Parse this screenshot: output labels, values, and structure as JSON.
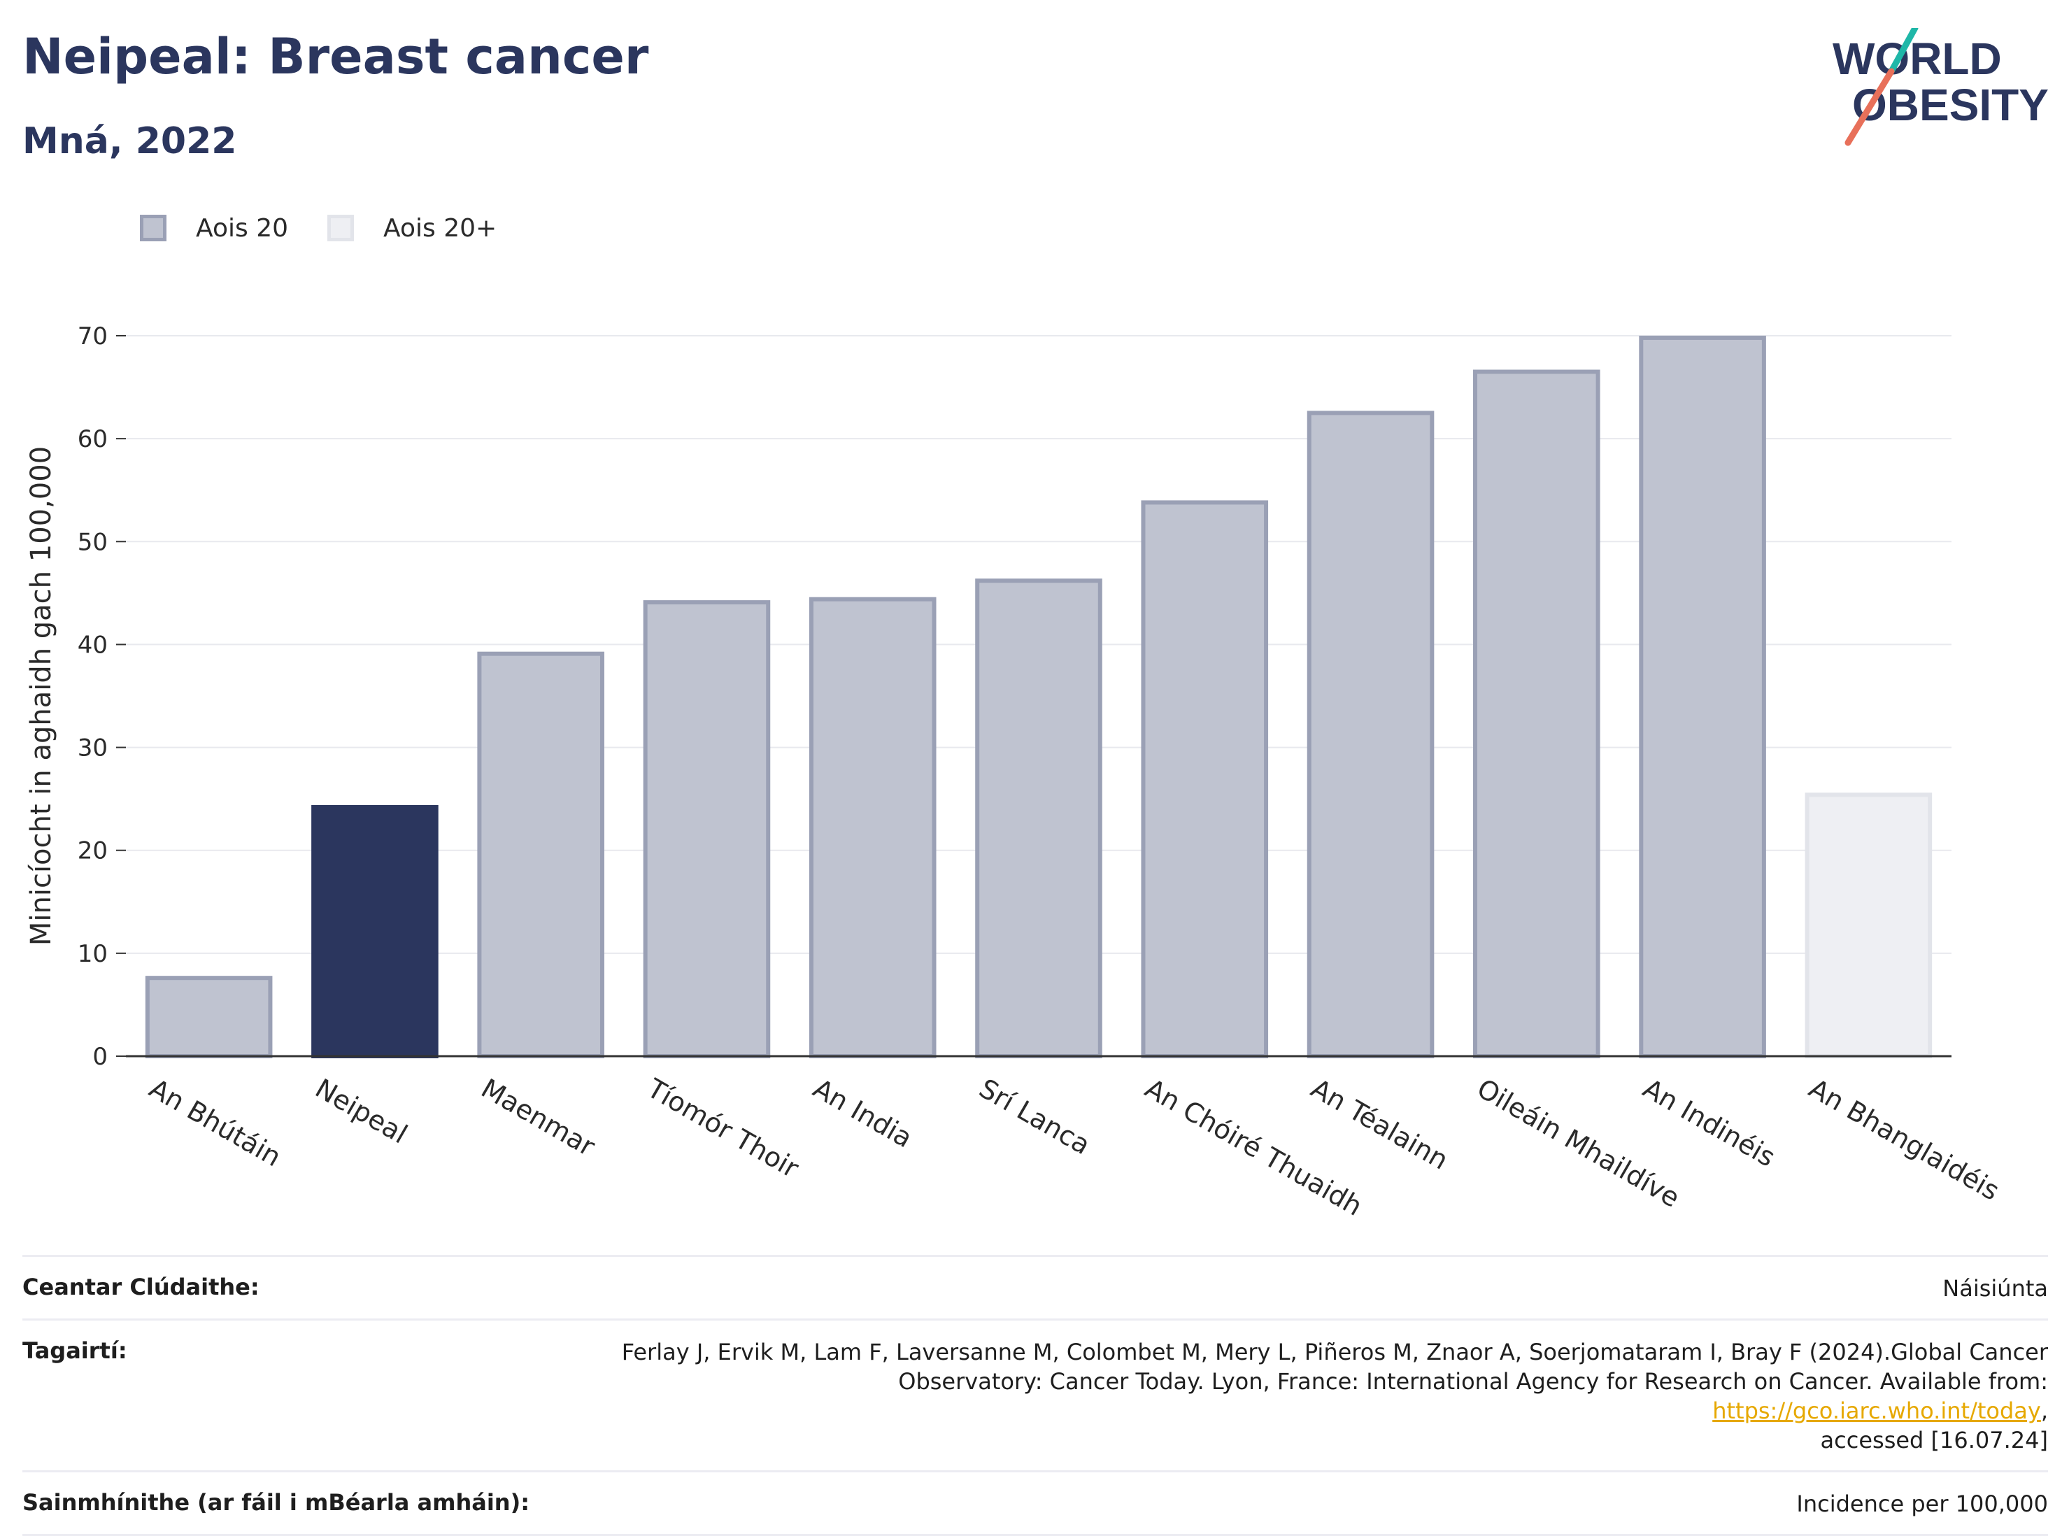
{
  "header": {
    "title": "Neipeal: Breast cancer",
    "subtitle": "Mná, 2022"
  },
  "logo": {
    "line1": "WORLD",
    "line2": "OBESITY",
    "slash_colors": [
      "#1fb7a8",
      "#e8705a"
    ]
  },
  "legend": {
    "items": [
      {
        "label": "Aois 20",
        "fill": "#bfc3d0",
        "stroke": "#9aa0b5"
      },
      {
        "label": "Aois 20+",
        "fill": "#eeeff3",
        "stroke": "#e2e4ea"
      }
    ]
  },
  "chart_data": {
    "type": "bar",
    "ylabel": "Minicíocht in aghaidh gach 100,000",
    "xlabel": "",
    "ylim": [
      0,
      70
    ],
    "yticks": [
      0,
      10,
      20,
      30,
      40,
      50,
      60,
      70
    ],
    "grid": true,
    "legend_placement": "top-left",
    "categories": [
      "An Bhútáin",
      "Neipeal",
      "Maenmar",
      "Tíomór Thoir",
      "An India",
      "Srí Lanca",
      "An Chóiré Thuaidh",
      "An Téalainn",
      "Oileáin Mhaildíve",
      "An Indinéis",
      "An Bhanglaidéis"
    ],
    "values": [
      7.6,
      24.2,
      39.1,
      44.1,
      44.4,
      46.2,
      53.8,
      62.5,
      66.5,
      69.8,
      25.4
    ],
    "groups": [
      "Aois 20",
      "Aois 20",
      "Aois 20",
      "Aois 20",
      "Aois 20",
      "Aois 20",
      "Aois 20",
      "Aois 20",
      "Aois 20",
      "Aois 20",
      "Aois 20+"
    ],
    "highlight": "Neipeal",
    "colors": {
      "highlight": "#2b365e",
      "Aois 20": "#bfc3d0",
      "Aois 20 stroke": "#9aa0b5",
      "Aois 20+": "#eeeff3",
      "Aois 20+ stroke": "#e2e4ea",
      "grid": "#e8e9ee",
      "axis": "#333333"
    }
  },
  "footer": {
    "rows": [
      {
        "label": "Ceantar Clúdaithe:",
        "value": "Náisiúnta"
      },
      {
        "label": "Tagairtí:",
        "value_line1": "Ferlay J, Ervik M, Lam F, Laversanne M, Colombet M, Mery L, Piñeros M, Znaor A, Soerjomataram I, Bray F (2024).Global Cancer",
        "value_line2_pre": "Observatory: Cancer Today. Lyon, France: International Agency for Research on Cancer. Available from: ",
        "link": "https://gco.iarc.who.int/today",
        "value_line2_post": ",",
        "value_line3": "accessed [16.07.24]"
      },
      {
        "label": "Sainmhínithe (ar fáil i mBéarla amháin):",
        "value": "Incidence per 100,000"
      }
    ]
  }
}
